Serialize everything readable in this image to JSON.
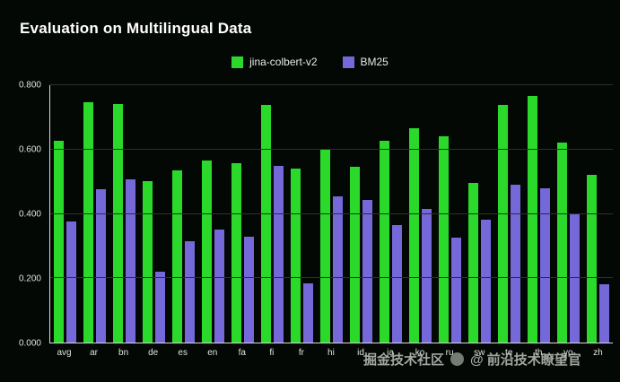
{
  "title": "Evaluation on Multilingual Data",
  "legend": [
    {
      "label": "jina-colbert-v2",
      "color": "#2bd92b"
    },
    {
      "label": "BM25",
      "color": "#7568d9"
    }
  ],
  "watermark": {
    "left": "掘金技术社区",
    "right": "@ 前沿技术瞭望官"
  },
  "colors": {
    "background": "#040804",
    "series1": "#2bd92b",
    "series2": "#7568d9",
    "grid": "#2c2f2c",
    "axis": "#d8d8d8",
    "text": "#e0e0e0"
  },
  "chart_data": {
    "type": "bar",
    "title": "Evaluation on Multilingual Data",
    "categories": [
      "avg",
      "ar",
      "bn",
      "de",
      "es",
      "en",
      "fa",
      "fi",
      "fr",
      "hi",
      "id",
      "ja",
      "ko",
      "ru",
      "sw",
      "te",
      "th",
      "yo",
      "zh"
    ],
    "series": [
      {
        "name": "jina-colbert-v2",
        "color": "#2bd92b",
        "values": [
          0.626,
          0.748,
          0.742,
          0.503,
          0.536,
          0.567,
          0.558,
          0.738,
          0.541,
          0.598,
          0.546,
          0.627,
          0.667,
          0.64,
          0.497,
          0.738,
          0.767,
          0.621,
          0.52
        ]
      },
      {
        "name": "BM25",
        "color": "#7568d9",
        "values": [
          0.376,
          0.476,
          0.506,
          0.22,
          0.315,
          0.35,
          0.33,
          0.549,
          0.184,
          0.455,
          0.444,
          0.366,
          0.416,
          0.326,
          0.382,
          0.49,
          0.48,
          0.402,
          0.182
        ]
      }
    ],
    "ylim": [
      0,
      0.8
    ],
    "yticks": [
      0,
      0.2,
      0.4,
      0.6,
      0.8
    ],
    "ytick_labels": [
      "0.000",
      "0.200",
      "0.400",
      "0.600",
      "0.800"
    ],
    "grid": "horizontal",
    "legend_position": "top"
  }
}
